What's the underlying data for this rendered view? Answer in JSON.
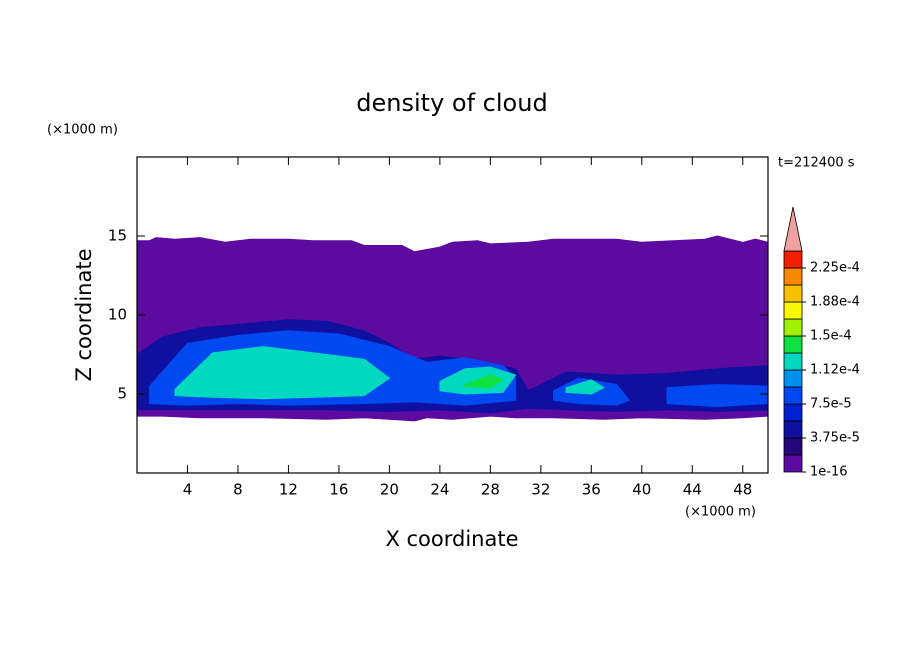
{
  "chart_data": {
    "type": "contour",
    "title": "density of cloud",
    "xlabel": "X coordinate",
    "ylabel": "Z coordinate",
    "xunit": "(×1000 m)",
    "yunit": "(×1000 m)",
    "time_label": "t=212400 s",
    "xlim": [
      0,
      50
    ],
    "ylim": [
      0,
      20
    ],
    "xticks": [
      4,
      8,
      12,
      16,
      20,
      24,
      28,
      32,
      36,
      40,
      44,
      48
    ],
    "yticks": [
      5,
      10,
      15
    ],
    "regions": [
      {
        "level": 1e-16,
        "x": [
          0,
          1,
          1.5,
          3,
          5,
          7,
          9,
          12,
          14,
          17,
          18,
          21,
          22,
          24,
          25,
          27,
          28,
          31,
          33,
          38,
          40,
          45,
          46,
          48,
          49,
          50,
          50,
          48,
          45,
          40,
          37,
          33,
          30,
          28,
          25,
          23,
          22,
          18,
          15,
          10,
          5,
          2,
          0
        ],
        "z": [
          14.7,
          14.7,
          14.9,
          14.8,
          14.9,
          14.6,
          14.8,
          14.8,
          14.7,
          14.7,
          14.4,
          14.4,
          14.0,
          14.3,
          14.6,
          14.7,
          14.5,
          14.6,
          14.8,
          14.8,
          14.6,
          14.8,
          15.0,
          14.6,
          14.8,
          14.6,
          3.6,
          3.5,
          3.4,
          3.5,
          3.4,
          3.5,
          3.5,
          3.6,
          3.4,
          3.5,
          3.3,
          3.5,
          3.4,
          3.5,
          3.5,
          3.6,
          3.6
        ]
      },
      {
        "level": 3.75e-05,
        "x": [
          0,
          2,
          5,
          8,
          12,
          15,
          18,
          20,
          22,
          24,
          26,
          30,
          31,
          34,
          38,
          42,
          46,
          50,
          50,
          46,
          42,
          38,
          34,
          31,
          28,
          24,
          20,
          15,
          10,
          5,
          0
        ],
        "z": [
          7.5,
          8.6,
          9.2,
          9.4,
          9.7,
          9.6,
          9.0,
          8.2,
          7.2,
          7.4,
          7.2,
          6.6,
          5.2,
          6.4,
          6.2,
          6.3,
          6.6,
          6.8,
          4.0,
          3.9,
          4.0,
          3.9,
          4.0,
          4.1,
          3.8,
          4.0,
          3.9,
          4.0,
          4.0,
          4.0,
          4.0
        ]
      },
      {
        "level": 7.5e-05,
        "x": [
          1,
          4,
          8,
          12,
          16,
          20,
          23,
          26,
          29,
          30,
          30,
          26,
          22,
          18,
          12,
          8,
          4,
          1
        ],
        "z": [
          5.5,
          8.2,
          8.7,
          9.0,
          8.8,
          8.0,
          7.0,
          7.3,
          6.8,
          6.0,
          4.6,
          4.3,
          4.5,
          4.4,
          4.3,
          4.4,
          4.3,
          4.4
        ]
      },
      {
        "level": 7.5e-05,
        "x": [
          33,
          35,
          38,
          39,
          38,
          35,
          33
        ],
        "z": [
          5.2,
          6.0,
          5.6,
          4.6,
          4.3,
          4.4,
          4.6
        ]
      },
      {
        "level": 7.5e-05,
        "x": [
          42,
          46,
          50,
          50,
          46,
          42
        ],
        "z": [
          5.4,
          5.6,
          5.5,
          4.4,
          4.2,
          4.4
        ]
      },
      {
        "level": 0.0001125,
        "x": [
          3,
          6,
          10,
          14,
          18,
          20,
          18,
          14,
          10,
          6,
          3
        ],
        "z": [
          5.3,
          7.6,
          8.0,
          7.6,
          7.2,
          6.0,
          4.9,
          4.8,
          4.7,
          4.8,
          4.9
        ]
      },
      {
        "level": 0.0001125,
        "x": [
          24,
          26,
          28,
          30,
          29,
          26,
          24
        ],
        "z": [
          5.8,
          6.6,
          6.7,
          6.2,
          5.1,
          5.0,
          5.2
        ]
      },
      {
        "level": 0.0001125,
        "x": [
          34,
          36,
          37,
          36,
          34
        ],
        "z": [
          5.4,
          5.9,
          5.4,
          5.0,
          5.1
        ]
      },
      {
        "level": 0.00013125,
        "x": [
          26,
          28,
          29,
          28,
          26
        ],
        "z": [
          5.6,
          6.2,
          5.9,
          5.4,
          5.5
        ]
      }
    ],
    "colorbar": {
      "levels": [
        1e-16,
        1.875e-05,
        3.75e-05,
        5.625e-05,
        7.5e-05,
        9.375e-05,
        0.0001125,
        0.00013125,
        0.00015,
        0.00016875,
        0.0001875,
        0.00020625,
        0.000225,
        0.00024375
      ],
      "colors": [
        "#5c0aa0",
        "#24067a",
        "#1010a0",
        "#0020d0",
        "#0048f0",
        "#0090f0",
        "#00d8c0",
        "#10e040",
        "#a0f000",
        "#f8f800",
        "#f8c000",
        "#f88800",
        "#f02000"
      ],
      "extend_color": "#f0a0a0",
      "ticks": [
        {
          "value": 1e-16,
          "label": "1e-16"
        },
        {
          "value": 3.75e-05,
          "label": "3.75e-5"
        },
        {
          "value": 7.5e-05,
          "label": "7.5e-5"
        },
        {
          "value": 0.0001125,
          "label": "1.12e-4"
        },
        {
          "value": 0.00015,
          "label": "1.5e-4"
        },
        {
          "value": 0.0001875,
          "label": "1.88e-4"
        },
        {
          "value": 0.000225,
          "label": "2.25e-4"
        }
      ]
    }
  }
}
